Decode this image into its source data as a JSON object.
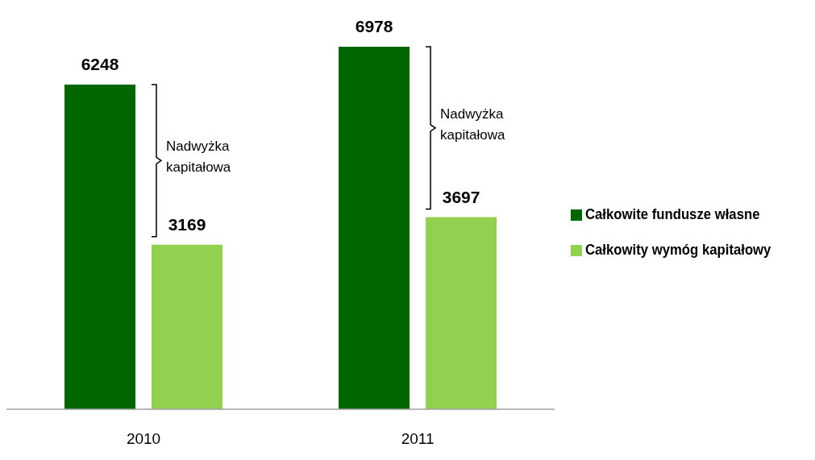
{
  "chart_data": {
    "type": "bar",
    "categories": [
      "2010",
      "2011"
    ],
    "series": [
      {
        "name": "Całkowite fundusze własne",
        "color": "#006600",
        "values": [
          6248,
          6978
        ]
      },
      {
        "name": "Całkowity wymóg kapitałowy",
        "color": "#92d050",
        "values": [
          3169,
          3697
        ]
      }
    ],
    "data_labels": true,
    "legend": "right",
    "grid": false,
    "annotations": [
      "Nadwyżka kapitałowa",
      "Nadwyżka kapitałowa"
    ]
  }
}
